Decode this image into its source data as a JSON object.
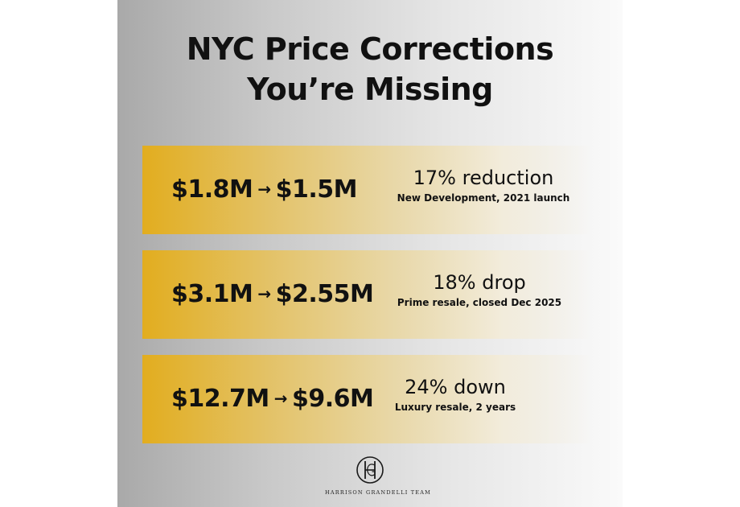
{
  "title": {
    "line1": "NYC Price Corrections",
    "line2": "You’re Missing"
  },
  "arrow_glyph": "→",
  "cards": [
    {
      "from": "$1.8M",
      "to": "$1.5M",
      "headline": "17% reduction",
      "detail": "New Development, 2021 launch"
    },
    {
      "from": "$3.1M",
      "to": "$2.55M",
      "headline": "18% drop",
      "detail": "Prime resale, closed Dec 2025"
    },
    {
      "from": "$12.7M",
      "to": "$9.6M",
      "headline": "24% down",
      "detail": "Luxury resale, 2 years"
    }
  ],
  "logo": {
    "icon": "hg-monogram-icon",
    "brand": "HARRISON GRANDELLI TEAM"
  },
  "colors": {
    "accent_gold": "#e2ad1f",
    "text": "#111111"
  }
}
